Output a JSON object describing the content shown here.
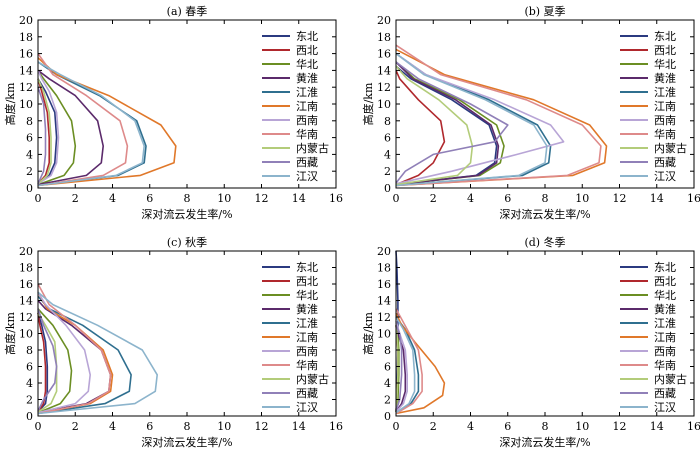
{
  "chart_data": [
    {
      "type": "line",
      "title": "(a) 春季",
      "xlabel": "深对流云发生率/%",
      "ylabel": "高度/km",
      "xlim": [
        0,
        16
      ],
      "ylim": [
        0,
        20
      ],
      "xticks": [
        0,
        2,
        4,
        6,
        8,
        10,
        12,
        14,
        16
      ],
      "yticks": [
        0,
        2,
        4,
        6,
        8,
        10,
        12,
        14,
        16,
        18,
        20
      ],
      "legend": "right",
      "series": [
        {
          "name": "东北",
          "color": "#2b3a80",
          "x": [
            0,
            0.6,
            0.9,
            1.0,
            0.9,
            0.4,
            0
          ],
          "y": [
            0.5,
            1.5,
            3,
            6,
            9,
            11.5,
            13
          ]
        },
        {
          "name": "西北",
          "color": "#b0282d",
          "x": [
            0,
            0.4,
            0.6,
            0.6,
            0.5,
            0.2,
            0
          ],
          "y": [
            0.5,
            1.5,
            3,
            6,
            9,
            11.5,
            13
          ]
        },
        {
          "name": "华北",
          "color": "#6b8e23",
          "x": [
            0,
            1.4,
            1.9,
            2.0,
            1.8,
            1.0,
            0.3,
            0
          ],
          "y": [
            0.4,
            1.5,
            3,
            5,
            8,
            11,
            13,
            14
          ]
        },
        {
          "name": "黄淮",
          "color": "#5b2a6b",
          "x": [
            0,
            2.6,
            3.4,
            3.5,
            3.2,
            2.0,
            0.6,
            0
          ],
          "y": [
            0.4,
            1.5,
            3,
            5,
            8,
            11,
            13,
            14
          ]
        },
        {
          "name": "江淮",
          "color": "#2f6f8f",
          "x": [
            0,
            4.3,
            5.7,
            5.8,
            5.3,
            3.3,
            1.0,
            0
          ],
          "y": [
            0.3,
            1.5,
            3,
            5,
            8,
            11,
            13.5,
            15
          ]
        },
        {
          "name": "江南",
          "color": "#e0782a",
          "x": [
            0,
            5.5,
            7.3,
            7.4,
            6.6,
            3.8,
            1.0,
            0
          ],
          "y": [
            0.3,
            1.5,
            3,
            5,
            7.5,
            11,
            13.5,
            15.5
          ]
        },
        {
          "name": "西南",
          "color": "#b8a5d6",
          "x": [
            0,
            0.7,
            1.0,
            1.1,
            1.0,
            0.6,
            0.2,
            0
          ],
          "y": [
            0.5,
            1.5,
            3,
            6,
            9,
            11.5,
            13,
            14
          ]
        },
        {
          "name": "华南",
          "color": "#de8a8a",
          "x": [
            0,
            3.5,
            4.7,
            4.8,
            4.4,
            2.6,
            0.8,
            0
          ],
          "y": [
            0.3,
            1.5,
            3,
            5,
            8,
            11,
            13.5,
            16
          ]
        },
        {
          "name": "内蒙古",
          "color": "#b3cc7a",
          "x": [
            0,
            0.5,
            0.7,
            0.7,
            0.6,
            0.3,
            0
          ],
          "y": [
            0.5,
            1.5,
            3,
            6,
            9,
            11.5,
            13
          ]
        },
        {
          "name": "西藏",
          "color": "#9080b8",
          "x": [
            0,
            0.3,
            0.4,
            0.4,
            0.3,
            0
          ],
          "y": [
            0.5,
            2,
            4,
            7,
            10,
            12
          ]
        },
        {
          "name": "江汉",
          "color": "#8cb4cc",
          "x": [
            0,
            4.2,
            5.6,
            5.7,
            5.2,
            3.4,
            1.2,
            0
          ],
          "y": [
            0.3,
            1.5,
            3,
            5,
            8,
            11,
            13.5,
            15
          ]
        }
      ]
    },
    {
      "type": "line",
      "title": "(b) 夏季",
      "xlabel": "深对流云发生率/%",
      "ylabel": "高度/km",
      "xlim": [
        0,
        16
      ],
      "ylim": [
        0,
        20
      ],
      "xticks": [
        0,
        2,
        4,
        6,
        8,
        10,
        12,
        14,
        16
      ],
      "yticks": [
        0,
        2,
        4,
        6,
        8,
        10,
        12,
        14,
        16,
        18,
        20
      ],
      "legend": "right",
      "series": [
        {
          "name": "东北",
          "color": "#2b3a80",
          "x": [
            0,
            4.3,
            5.3,
            5.4,
            5.0,
            3.0,
            0.8,
            0
          ],
          "y": [
            0.4,
            1.5,
            3,
            5,
            7.5,
            10.5,
            13,
            14.5
          ]
        },
        {
          "name": "西北",
          "color": "#b0282d",
          "x": [
            0,
            1.2,
            2.0,
            2.6,
            2.4,
            1.2,
            0.2,
            0
          ],
          "y": [
            0.4,
            1.5,
            3,
            5.5,
            8,
            10.5,
            13,
            14
          ]
        },
        {
          "name": "华北",
          "color": "#6b8e23",
          "x": [
            0,
            4.5,
            5.6,
            5.8,
            5.4,
            3.4,
            1.0,
            0
          ],
          "y": [
            0.4,
            1.5,
            3,
            5,
            7.5,
            10.5,
            13,
            15
          ]
        },
        {
          "name": "黄淮",
          "color": "#5b2a6b",
          "x": [
            0,
            4.4,
            5.4,
            5.5,
            5.1,
            3.2,
            0.9,
            0
          ],
          "y": [
            0.4,
            1.5,
            3,
            5,
            7.5,
            10.5,
            13,
            15
          ]
        },
        {
          "name": "江淮",
          "color": "#2f6f8f",
          "x": [
            0,
            6.8,
            8.2,
            8.3,
            7.6,
            5.0,
            1.6,
            0
          ],
          "y": [
            0.3,
            1.5,
            3,
            5,
            7.5,
            10.5,
            13.5,
            16
          ]
        },
        {
          "name": "江南",
          "color": "#e0782a",
          "x": [
            0,
            9.5,
            11.2,
            11.3,
            10.4,
            7.4,
            2.6,
            0
          ],
          "y": [
            0.3,
            1.5,
            3,
            5,
            7.5,
            10.5,
            13.5,
            16.5
          ]
        },
        {
          "name": "西南",
          "color": "#b8a5d6",
          "x": [
            0,
            3.0,
            6.5,
            9.0,
            8.3,
            5.3,
            1.6,
            0
          ],
          "y": [
            0.5,
            2,
            4,
            5.5,
            7.5,
            10.5,
            13.5,
            16
          ]
        },
        {
          "name": "华南",
          "color": "#de8a8a",
          "x": [
            0,
            9.2,
            10.9,
            11.0,
            10.0,
            7.0,
            2.4,
            0
          ],
          "y": [
            0.3,
            1.5,
            3,
            5,
            7.5,
            10.5,
            13.5,
            17
          ]
        },
        {
          "name": "内蒙古",
          "color": "#b3cc7a",
          "x": [
            0,
            3.3,
            4.0,
            4.1,
            3.8,
            2.3,
            0.6,
            0
          ],
          "y": [
            0.4,
            1.5,
            3,
            5,
            7.5,
            10.5,
            13,
            14.5
          ]
        },
        {
          "name": "西藏",
          "color": "#9080b8",
          "x": [
            0,
            0.5,
            2.0,
            5.3,
            6.0,
            4.0,
            1.2,
            0
          ],
          "y": [
            0.6,
            2,
            4,
            5.5,
            7.5,
            10,
            13,
            15
          ]
        },
        {
          "name": "江汉",
          "color": "#8cb4cc",
          "x": [
            0,
            6.6,
            8.0,
            8.1,
            7.4,
            4.8,
            1.5,
            0
          ],
          "y": [
            0.3,
            1.5,
            3,
            5,
            7.5,
            10.5,
            13.5,
            16
          ]
        }
      ]
    },
    {
      "type": "line",
      "title": "(c) 秋季",
      "xlabel": "深对流云发生率/%",
      "ylabel": "高度/km",
      "xlim": [
        0,
        16
      ],
      "ylim": [
        0,
        20
      ],
      "xticks": [
        0,
        2,
        4,
        6,
        8,
        10,
        12,
        14,
        16
      ],
      "yticks": [
        0,
        2,
        4,
        6,
        8,
        10,
        12,
        14,
        16,
        18,
        20
      ],
      "legend": "right",
      "series": [
        {
          "name": "东北",
          "color": "#2b3a80",
          "x": [
            0,
            0.4,
            0.5,
            0.5,
            0.4,
            0.2,
            0
          ],
          "y": [
            0.5,
            1.5,
            3,
            6,
            9,
            11,
            12.5
          ]
        },
        {
          "name": "西北",
          "color": "#b0282d",
          "x": [
            0,
            0.3,
            0.4,
            0.4,
            0.3,
            0.1,
            0
          ],
          "y": [
            0.5,
            1.5,
            3,
            6,
            9,
            11,
            12.5
          ]
        },
        {
          "name": "华北",
          "color": "#6b8e23",
          "x": [
            0,
            1.2,
            1.7,
            1.8,
            1.6,
            0.8,
            0
          ],
          "y": [
            0.4,
            1.5,
            3,
            5.5,
            8,
            11,
            13
          ]
        },
        {
          "name": "黄淮",
          "color": "#5b2a6b",
          "x": [
            0,
            2.6,
            3.8,
            3.9,
            3.4,
            1.8,
            0.4,
            0
          ],
          "y": [
            0.4,
            1.5,
            3,
            5,
            8,
            11,
            13,
            14
          ]
        },
        {
          "name": "江淮",
          "color": "#2f6f8f",
          "x": [
            0,
            3.6,
            4.9,
            5.0,
            4.3,
            2.4,
            0.6,
            0
          ],
          "y": [
            0.3,
            1.5,
            3,
            5,
            8,
            11,
            13,
            14.5
          ]
        },
        {
          "name": "江南",
          "color": "#e0782a",
          "x": [
            0,
            2.8,
            3.9,
            4.0,
            3.5,
            2.0,
            0.5,
            0
          ],
          "y": [
            0.3,
            1.5,
            3,
            5,
            8,
            11,
            13,
            15
          ]
        },
        {
          "name": "西南",
          "color": "#b8a5d6",
          "x": [
            0,
            2.0,
            2.7,
            2.8,
            2.5,
            1.5,
            0.4,
            0
          ],
          "y": [
            0.4,
            1.5,
            3,
            5,
            8,
            11,
            13.5,
            15
          ]
        },
        {
          "name": "华南",
          "color": "#de8a8a",
          "x": [
            0,
            2.7,
            3.8,
            3.9,
            3.4,
            2.0,
            0.6,
            0
          ],
          "y": [
            0.3,
            1.5,
            3,
            5,
            8,
            11,
            13.5,
            16
          ]
        },
        {
          "name": "内蒙古",
          "color": "#b3cc7a",
          "x": [
            0,
            0.7,
            1.0,
            1.0,
            0.9,
            0.4,
            0
          ],
          "y": [
            0.5,
            1.5,
            3,
            6,
            9,
            11,
            12.5
          ]
        },
        {
          "name": "西藏",
          "color": "#9080b8",
          "x": [
            0,
            0.3,
            0.9,
            1.0,
            0.8,
            0.3,
            0
          ],
          "y": [
            0.6,
            2,
            4,
            6,
            8.5,
            11,
            13
          ]
        },
        {
          "name": "江汉",
          "color": "#8cb4cc",
          "x": [
            0,
            5.2,
            6.3,
            6.4,
            5.6,
            3.2,
            0.8,
            0
          ],
          "y": [
            0.3,
            1.5,
            3,
            5,
            8,
            11,
            13.5,
            15
          ]
        }
      ]
    },
    {
      "type": "line",
      "title": "(d) 冬季",
      "xlabel": "深对流云发生率/%",
      "ylabel": "高度/km",
      "xlim": [
        0,
        16
      ],
      "ylim": [
        0,
        20
      ],
      "xticks": [
        0,
        2,
        4,
        6,
        8,
        10,
        12,
        14,
        16
      ],
      "yticks": [
        0,
        2,
        4,
        6,
        8,
        10,
        12,
        14,
        16,
        18,
        20
      ],
      "legend": "right",
      "series": [
        {
          "name": "东北",
          "color": "#2b3a80",
          "x": [
            0,
            0.05,
            0.1,
            0.1,
            0.05,
            0
          ],
          "y": [
            0.5,
            2,
            8,
            14,
            18,
            20
          ]
        },
        {
          "name": "西北",
          "color": "#b0282d",
          "x": [
            0,
            0.05,
            0.1,
            0.1,
            0.05,
            0
          ],
          "y": [
            0.5,
            2,
            5,
            8,
            10,
            11
          ]
        },
        {
          "name": "华北",
          "color": "#6b8e23",
          "x": [
            0,
            0.1,
            0.15,
            0.15,
            0.1,
            0
          ],
          "y": [
            0.5,
            2,
            5,
            8,
            10,
            11
          ]
        },
        {
          "name": "黄淮",
          "color": "#5b2a6b",
          "x": [
            0,
            0.3,
            0.5,
            0.5,
            0.4,
            0.1,
            0
          ],
          "y": [
            0.5,
            1.5,
            3,
            5,
            8,
            10,
            11
          ]
        },
        {
          "name": "江淮",
          "color": "#2f6f8f",
          "x": [
            0,
            0.8,
            1.2,
            1.2,
            1.0,
            0.5,
            0
          ],
          "y": [
            0.4,
            1.5,
            3,
            5,
            8,
            10.5,
            12
          ]
        },
        {
          "name": "江南",
          "color": "#e0782a",
          "x": [
            0,
            1.5,
            2.5,
            2.6,
            2.1,
            1.0,
            0.3,
            0
          ],
          "y": [
            0.3,
            1,
            2.5,
            4,
            6,
            9,
            11,
            12.5
          ]
        },
        {
          "name": "西南",
          "color": "#b8a5d6",
          "x": [
            0,
            0.4,
            0.6,
            0.6,
            0.5,
            0.2,
            0
          ],
          "y": [
            0.5,
            1.5,
            3,
            5,
            8,
            10,
            11.5
          ]
        },
        {
          "name": "华南",
          "color": "#de8a8a",
          "x": [
            0,
            0.9,
            1.4,
            1.4,
            1.2,
            0.6,
            0
          ],
          "y": [
            0.3,
            1.5,
            3,
            5,
            8,
            10.5,
            13
          ]
        },
        {
          "name": "内蒙古",
          "color": "#b3cc7a",
          "x": [
            0,
            0.05,
            0.1,
            0.1,
            0.05,
            0
          ],
          "y": [
            0.5,
            2,
            5,
            8,
            10,
            11
          ]
        },
        {
          "name": "西藏",
          "color": "#9080b8",
          "x": [
            0,
            0.2,
            0.3,
            0.3,
            0.2,
            0
          ],
          "y": [
            0.6,
            2,
            5,
            8,
            10,
            11
          ]
        },
        {
          "name": "江汉",
          "color": "#8cb4cc",
          "x": [
            0,
            0.7,
            1.0,
            1.0,
            0.9,
            0.4,
            0
          ],
          "y": [
            0.4,
            1.5,
            3,
            5,
            8,
            10.5,
            12
          ]
        }
      ]
    }
  ]
}
